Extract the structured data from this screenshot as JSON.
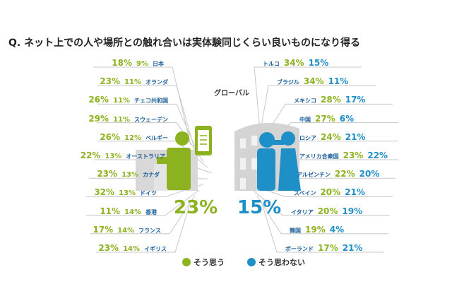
{
  "title": "Q. ネット上での人や場所との触れ合いは実体験同じくらい良いものになり得る",
  "colors": {
    "agree": "#8cb21f",
    "disagree": "#1f8fc8",
    "country": "#1a5f9a",
    "lines": "#c8c8c8"
  },
  "chart_data": {
    "type": "table",
    "center_label": "グローバル",
    "global": {
      "agree": "23%",
      "disagree": "15%"
    },
    "legend": {
      "agree": "そう思う",
      "disagree": "そう思わない"
    },
    "left_countries": [
      {
        "name": "日本",
        "agree": "18%",
        "disagree": "9%"
      },
      {
        "name": "オランダ",
        "agree": "23%",
        "disagree": "11%"
      },
      {
        "name": "チェコ共和国",
        "agree": "26%",
        "disagree": "11%"
      },
      {
        "name": "スウェーデン",
        "agree": "29%",
        "disagree": "11%"
      },
      {
        "name": "ベルギー",
        "agree": "26%",
        "disagree": "12%"
      },
      {
        "name": "オーストラリア",
        "agree": "22%",
        "disagree": "13%"
      },
      {
        "name": "カナダ",
        "agree": "23%",
        "disagree": "13%"
      },
      {
        "name": "ドイツ",
        "agree": "32%",
        "disagree": "13%"
      },
      {
        "name": "香港",
        "agree": "11%",
        "disagree": "14%"
      },
      {
        "name": "フランス",
        "agree": "17%",
        "disagree": "14%"
      },
      {
        "name": "イギリス",
        "agree": "23%",
        "disagree": "14%"
      }
    ],
    "right_countries": [
      {
        "name": "トルコ",
        "agree": "34%",
        "disagree": "15%"
      },
      {
        "name": "ブラジル",
        "agree": "34%",
        "disagree": "11%"
      },
      {
        "name": "メキシコ",
        "agree": "28%",
        "disagree": "17%"
      },
      {
        "name": "中国",
        "agree": "27%",
        "disagree": "6%"
      },
      {
        "name": "ロシア",
        "agree": "24%",
        "disagree": "21%"
      },
      {
        "name": "アメリカ合衆国",
        "agree": "23%",
        "disagree": "22%"
      },
      {
        "name": "アルゼンチン",
        "agree": "22%",
        "disagree": "20%"
      },
      {
        "name": "スペイン",
        "agree": "20%",
        "disagree": "21%"
      },
      {
        "name": "イタリア",
        "agree": "20%",
        "disagree": "19%"
      },
      {
        "name": "韓国",
        "agree": "19%",
        "disagree": "4%"
      },
      {
        "name": "ポーランド",
        "agree": "17%",
        "disagree": "21%"
      }
    ]
  }
}
